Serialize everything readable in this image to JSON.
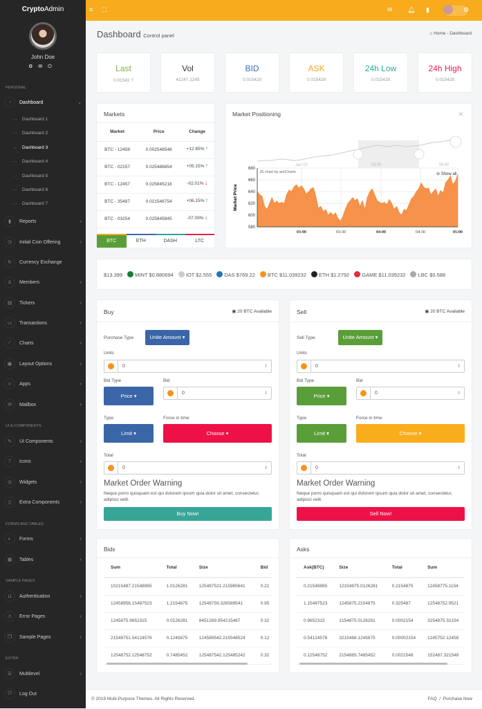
{
  "brand": {
    "bold": "Crypto",
    "rest": "Admin"
  },
  "user": {
    "name": "John Doe"
  },
  "sidebar": {
    "sections": [
      "PERSONAL",
      "UI & COMPONENTS",
      "FORMS And TABLES",
      "SAMPLE PAGES",
      "EXTRA"
    ],
    "dashboard": "Dashboard",
    "subitems": [
      "Dashboard 1",
      "Dashboard 2",
      "Dashboard 3",
      "Dashboard 4",
      "Dashboard 5",
      "Dashboard 6",
      "Dashboard 7"
    ],
    "active_sub": 2,
    "items": [
      {
        "label": "Reports",
        "icon": "bar-chart-icon",
        "arrow": true
      },
      {
        "label": "Initial Coin Offering",
        "icon": "timer-icon",
        "arrow": true
      },
      {
        "label": "Currency Exchange",
        "icon": "exchange-icon",
        "arrow": false
      },
      {
        "label": "Members",
        "icon": "user-icon",
        "arrow": true
      },
      {
        "label": "Tickers",
        "icon": "ticker-icon",
        "arrow": true
      },
      {
        "label": "Transactions",
        "icon": "wallet-icon",
        "arrow": true
      },
      {
        "label": "Charts",
        "icon": "line-chart-icon",
        "arrow": true
      },
      {
        "label": "Layout Options",
        "icon": "layout-icon",
        "arrow": true
      },
      {
        "label": "Apps",
        "icon": "apps-icon",
        "arrow": true
      },
      {
        "label": "Mailbox",
        "icon": "mail-icon",
        "arrow": true
      },
      {
        "label": "UI Components",
        "icon": "edit-icon",
        "arrow": true
      },
      {
        "label": "Icons",
        "icon": "icons-icon",
        "arrow": true
      },
      {
        "label": "Widgets",
        "icon": "widgets-icon",
        "arrow": true
      },
      {
        "label": "Extra Components",
        "icon": "component-icon",
        "arrow": true
      },
      {
        "label": "Forms",
        "icon": "forms-icon",
        "arrow": true
      },
      {
        "label": "Tables",
        "icon": "table-icon",
        "arrow": true
      },
      {
        "label": "Authentication",
        "icon": "lock-icon",
        "arrow": true
      },
      {
        "label": "Error Pages",
        "icon": "warning-icon",
        "arrow": true
      },
      {
        "label": "Sample Pages",
        "icon": "pages-icon",
        "arrow": true
      },
      {
        "label": "Multilevel",
        "icon": "list-icon",
        "arrow": true
      },
      {
        "label": "Log Out",
        "icon": "power-icon",
        "arrow": false
      }
    ]
  },
  "header": {
    "title": "Dashboard",
    "subtitle": "Control panel",
    "breadcrumb": [
      "Home",
      "Dashboard"
    ]
  },
  "stats": [
    {
      "title": "Last",
      "value": "0.01542",
      "arrow": "up",
      "color": "#7cb342"
    },
    {
      "title": "Vol",
      "value": "41247.1245",
      "color": "#333333"
    },
    {
      "title": "BID",
      "value": "0.015428",
      "color": "#3a6bb0"
    },
    {
      "title": "ASK",
      "value": "0.015428",
      "color": "#f2a81c"
    },
    {
      "title": "24h Low",
      "value": "0.015428",
      "color": "#26a69a"
    },
    {
      "title": "24h High",
      "value": "0.015428",
      "color": "#e91e4e"
    }
  ],
  "markets": {
    "title": "Markets",
    "headers": [
      "Market",
      "Price",
      "Change"
    ],
    "rows": [
      [
        "BTC - 12458",
        "0.002548548",
        "+12.85%",
        "up"
      ],
      [
        "BTC - 02157",
        "0.025486854",
        "+05.15%",
        "up"
      ],
      [
        "BTC - 12457",
        "0.025845218",
        "-02.01%",
        "down"
      ],
      [
        "BTC - 35487",
        "0.021548754",
        "+06.15%",
        "up"
      ],
      [
        "BTC - 03254",
        "0.025845845",
        "-07.09%",
        "down"
      ]
    ],
    "tabs": [
      "BTC",
      "ETH",
      "DASH",
      "LTC"
    ]
  },
  "chart_data": {
    "title": "Market Positioning",
    "type": "area",
    "ylabel": "Market Price",
    "ylim": [
      580,
      680
    ],
    "yticks": [
      "580",
      "600",
      "620",
      "640",
      "660",
      "680"
    ],
    "xticks": [
      "03:00",
      "03:30",
      "04:00",
      "04:30",
      "05:00"
    ],
    "navigator_ticks": [
      "Jan 02",
      "03:00",
      "06:00"
    ],
    "credit": "JS chart by amCharts",
    "show_all": "Show all",
    "color": "#f7924a",
    "values": [
      640,
      635,
      632,
      615,
      610,
      620,
      630,
      620,
      624,
      620,
      622,
      620,
      635,
      643,
      640,
      648,
      652,
      646,
      650,
      645,
      636,
      640,
      645,
      647,
      632,
      612,
      615,
      606,
      610,
      600,
      605,
      600,
      604,
      595,
      590,
      598,
      610,
      620,
      625,
      630,
      625,
      628,
      615,
      625,
      610,
      630,
      640,
      645,
      635,
      625,
      622,
      620,
      622,
      618,
      627,
      620,
      610,
      615,
      605,
      600,
      610,
      608,
      618,
      628,
      632,
      640,
      645,
      655,
      648,
      645,
      646,
      635,
      640,
      645,
      632,
      642,
      638,
      655,
      660,
      667,
      652,
      658,
      670
    ]
  },
  "ticker": [
    {
      "label": "$13.399",
      "color": ""
    },
    {
      "label": "MINT $0.880694",
      "color": "#1b7a3a"
    },
    {
      "label": "IOT $2.555",
      "color": "#cccccc"
    },
    {
      "label": "DAS $769.22",
      "color": "#1c75bc"
    },
    {
      "label": "BTC $11.039232",
      "color": "#f7931a"
    },
    {
      "label": "ETH $1.2792",
      "color": "#222222"
    },
    {
      "label": "GAME $11.039232",
      "color": "#e52a3a"
    },
    {
      "label": "LBC $0.588",
      "color": "#aaaaaa"
    }
  ],
  "buy": {
    "title": "Buy",
    "available": "20 BTC Available",
    "purchase_label": "Purchase Type",
    "purchase_btn": "Unite Amount",
    "units": "Units",
    "units_val": "0",
    "bid_type": "Bid Type",
    "price_btn": "Price",
    "bid": "Bid",
    "bid_val": "0",
    "type": "Type",
    "limit_btn": "Limit",
    "force": "Force in time",
    "choose_btn": "Choose",
    "total": "Total",
    "total_val": "0",
    "warning": "Market Order Warning",
    "warning_text": "Neque porro quisquam est qui dolorem ipsum quia dolor sit amet, consectetur, adipisci velit.",
    "action": "Buy Now!"
  },
  "sell": {
    "title": "Sell",
    "available": "20 BTC Available",
    "purchase_label": "Sell Type",
    "purchase_btn": "Unite Amount",
    "units": "Units",
    "units_val": "0",
    "bid_type": "Bid Type",
    "price_btn": "Price",
    "bid": "Bid",
    "bid_val": "0",
    "type": "Type",
    "limit_btn": "Limit",
    "force": "Force in time",
    "choose_btn": "Choose",
    "total": "Total",
    "total_val": "0",
    "warning": "Market Order Warning",
    "warning_text": "Neque porro quisquam est qui dolorem ipsum quia dolor sit amet, consectetur, adipisci velit.",
    "action": "Sell Now!"
  },
  "colors": {
    "blue": "#3a66a8",
    "green": "#5a9e3a",
    "red": "#ee1148",
    "orange": "#f9ad1d",
    "teal": "#38a597",
    "header": "#f7ab1d"
  },
  "bids": {
    "title": "Bids",
    "headers": [
      "Sum",
      "Total",
      "Size",
      "Bid"
    ],
    "rows": [
      [
        "10215487.21548965",
        "1.0126281",
        "125487521.215985641",
        "0.21"
      ],
      [
        "12458956.15487523",
        "1.2154875",
        "12548759.326589541",
        "0.95"
      ],
      [
        "1245875.9652315",
        "0.0126281",
        "8451269.954215487",
        "0.32"
      ],
      [
        "21548751.54124578",
        "0.1245875",
        "124589542.215548524",
        "0.12"
      ],
      [
        "12548752.12548752",
        "0.7485452",
        "125487542.125485242",
        "0.32"
      ]
    ]
  },
  "asks": {
    "title": "Asks",
    "headers": [
      "Ask(BTC)",
      "Size",
      "Total",
      "Sum"
    ],
    "rows": [
      [
        "0.21548965",
        "12154875.0126281",
        "0.2154875",
        "12458775.1154"
      ],
      [
        "1.15487523",
        "1245875.2154875",
        "0.325487",
        "12548752.9521"
      ],
      [
        "0.9652315",
        "2154875.0126281",
        "0.0002154",
        "3254875.32154"
      ],
      [
        "0.54124578",
        "3215488.1245875",
        "0.00002154",
        "1245752.12458"
      ],
      [
        "0.12548752",
        "2154685.7485452",
        "0.0021548",
        "152487.321548"
      ]
    ]
  },
  "footer": {
    "copyright": "© 2019 Multi-Purpose Themes. All Rights Reserved.",
    "links": [
      "FAQ",
      "Purchase Now"
    ]
  }
}
